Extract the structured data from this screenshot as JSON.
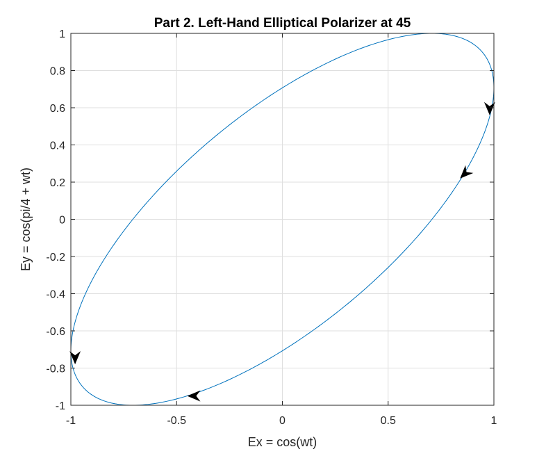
{
  "chart_data": {
    "type": "line",
    "title": "Part 2. Left-Hand Elliptical Polarizer at 45",
    "xlabel": "Ex = cos(wt)",
    "ylabel": "Ey = cos(pi/4 + wt)",
    "xlim": [
      -1,
      1
    ],
    "ylim": [
      -1,
      1
    ],
    "grid": true,
    "x_ticks": [
      -1,
      -0.5,
      0,
      0.5,
      1
    ],
    "x_tick_labels": [
      "-1",
      "-0.5",
      "0",
      "0.5",
      "1"
    ],
    "y_ticks": [
      -1,
      -0.8,
      -0.6,
      -0.4,
      -0.2,
      0,
      0.2,
      0.4,
      0.6,
      0.8,
      1
    ],
    "y_tick_labels": [
      "-1",
      "-0.8",
      "-0.6",
      "-0.4",
      "-0.2",
      "0",
      "0.2",
      "0.4",
      "0.6",
      "0.8",
      "1"
    ],
    "series": [
      {
        "curve": "ellipse",
        "x_expression": "cos(wt)",
        "y_expression": "cos(pi/4 + wt)",
        "phase_shift_rad": 0.7853981634,
        "color": "#0072bd"
      }
    ],
    "arrows": [
      {
        "x": 0.98,
        "y": 0.56,
        "direction": "down"
      },
      {
        "x": 0.84,
        "y": 0.22,
        "direction": "down-left"
      },
      {
        "x": -0.45,
        "y": -0.95,
        "direction": "left"
      },
      {
        "x": -0.98,
        "y": -0.78,
        "direction": "down"
      }
    ],
    "arrow_color": "#000000"
  }
}
